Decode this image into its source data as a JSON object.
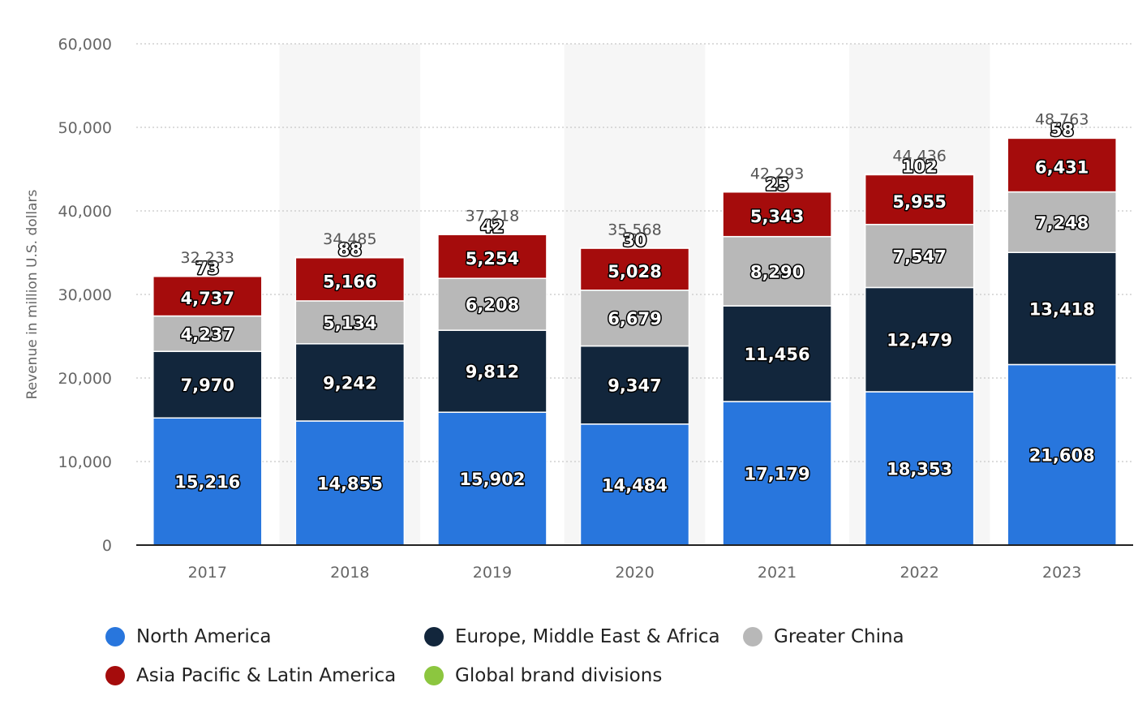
{
  "chart_data": {
    "type": "bar",
    "stacked": true,
    "title": "",
    "xlabel": "",
    "ylabel": "Revenue in million U.S. dollars",
    "ylim": [
      0,
      60000
    ],
    "yticks": [
      0,
      10000,
      20000,
      30000,
      40000,
      50000,
      60000
    ],
    "ytick_labels": [
      "0",
      "10,000",
      "20,000",
      "30,000",
      "40,000",
      "50,000",
      "60,000"
    ],
    "grid": true,
    "legend_position": "bottom",
    "categories": [
      "2017",
      "2018",
      "2019",
      "2020",
      "2021",
      "2022",
      "2023"
    ],
    "series": [
      {
        "name": "North America",
        "color": "#2876dd",
        "values": [
          15216,
          14855,
          15902,
          14484,
          17179,
          18353,
          21608
        ],
        "labels": [
          "15,216",
          "14,855",
          "15,902",
          "14,484",
          "17,179",
          "18,353",
          "21,608"
        ]
      },
      {
        "name": "Europe, Middle East & Africa",
        "color": "#12263c",
        "values": [
          7970,
          9242,
          9812,
          9347,
          11456,
          12479,
          13418
        ],
        "labels": [
          "7,970",
          "9,242",
          "9,812",
          "9,347",
          "11,456",
          "12,479",
          "13,418"
        ]
      },
      {
        "name": "Greater China",
        "color": "#b8b8b8",
        "values": [
          4237,
          5134,
          6208,
          6679,
          8290,
          7547,
          7248
        ],
        "labels": [
          "4,237",
          "5,134",
          "6,208",
          "6,679",
          "8,290",
          "7,547",
          "7,248"
        ]
      },
      {
        "name": "Asia Pacific & Latin America",
        "color": "#a50c0c",
        "values": [
          4737,
          5166,
          5254,
          5028,
          5343,
          5955,
          6431
        ],
        "labels": [
          "4,737",
          "5,166",
          "5,254",
          "5,028",
          "5,343",
          "5,955",
          "6,431"
        ]
      },
      {
        "name": "Global brand divisions",
        "color": "#8cc63f",
        "values": [
          73,
          88,
          42,
          30,
          25,
          102,
          58
        ],
        "labels": [
          "73",
          "88",
          "42",
          "30",
          "25",
          "102",
          "58"
        ]
      }
    ],
    "totals": [
      32233,
      34485,
      37218,
      35568,
      42293,
      44436,
      48763
    ],
    "total_labels": [
      "32,233",
      "34,485",
      "37,218",
      "35,568",
      "42,293",
      "44,436",
      "48,763"
    ]
  },
  "colors": {
    "grid": "#c8c8c8",
    "axis": "#222222",
    "band": "#f6f6f6"
  }
}
